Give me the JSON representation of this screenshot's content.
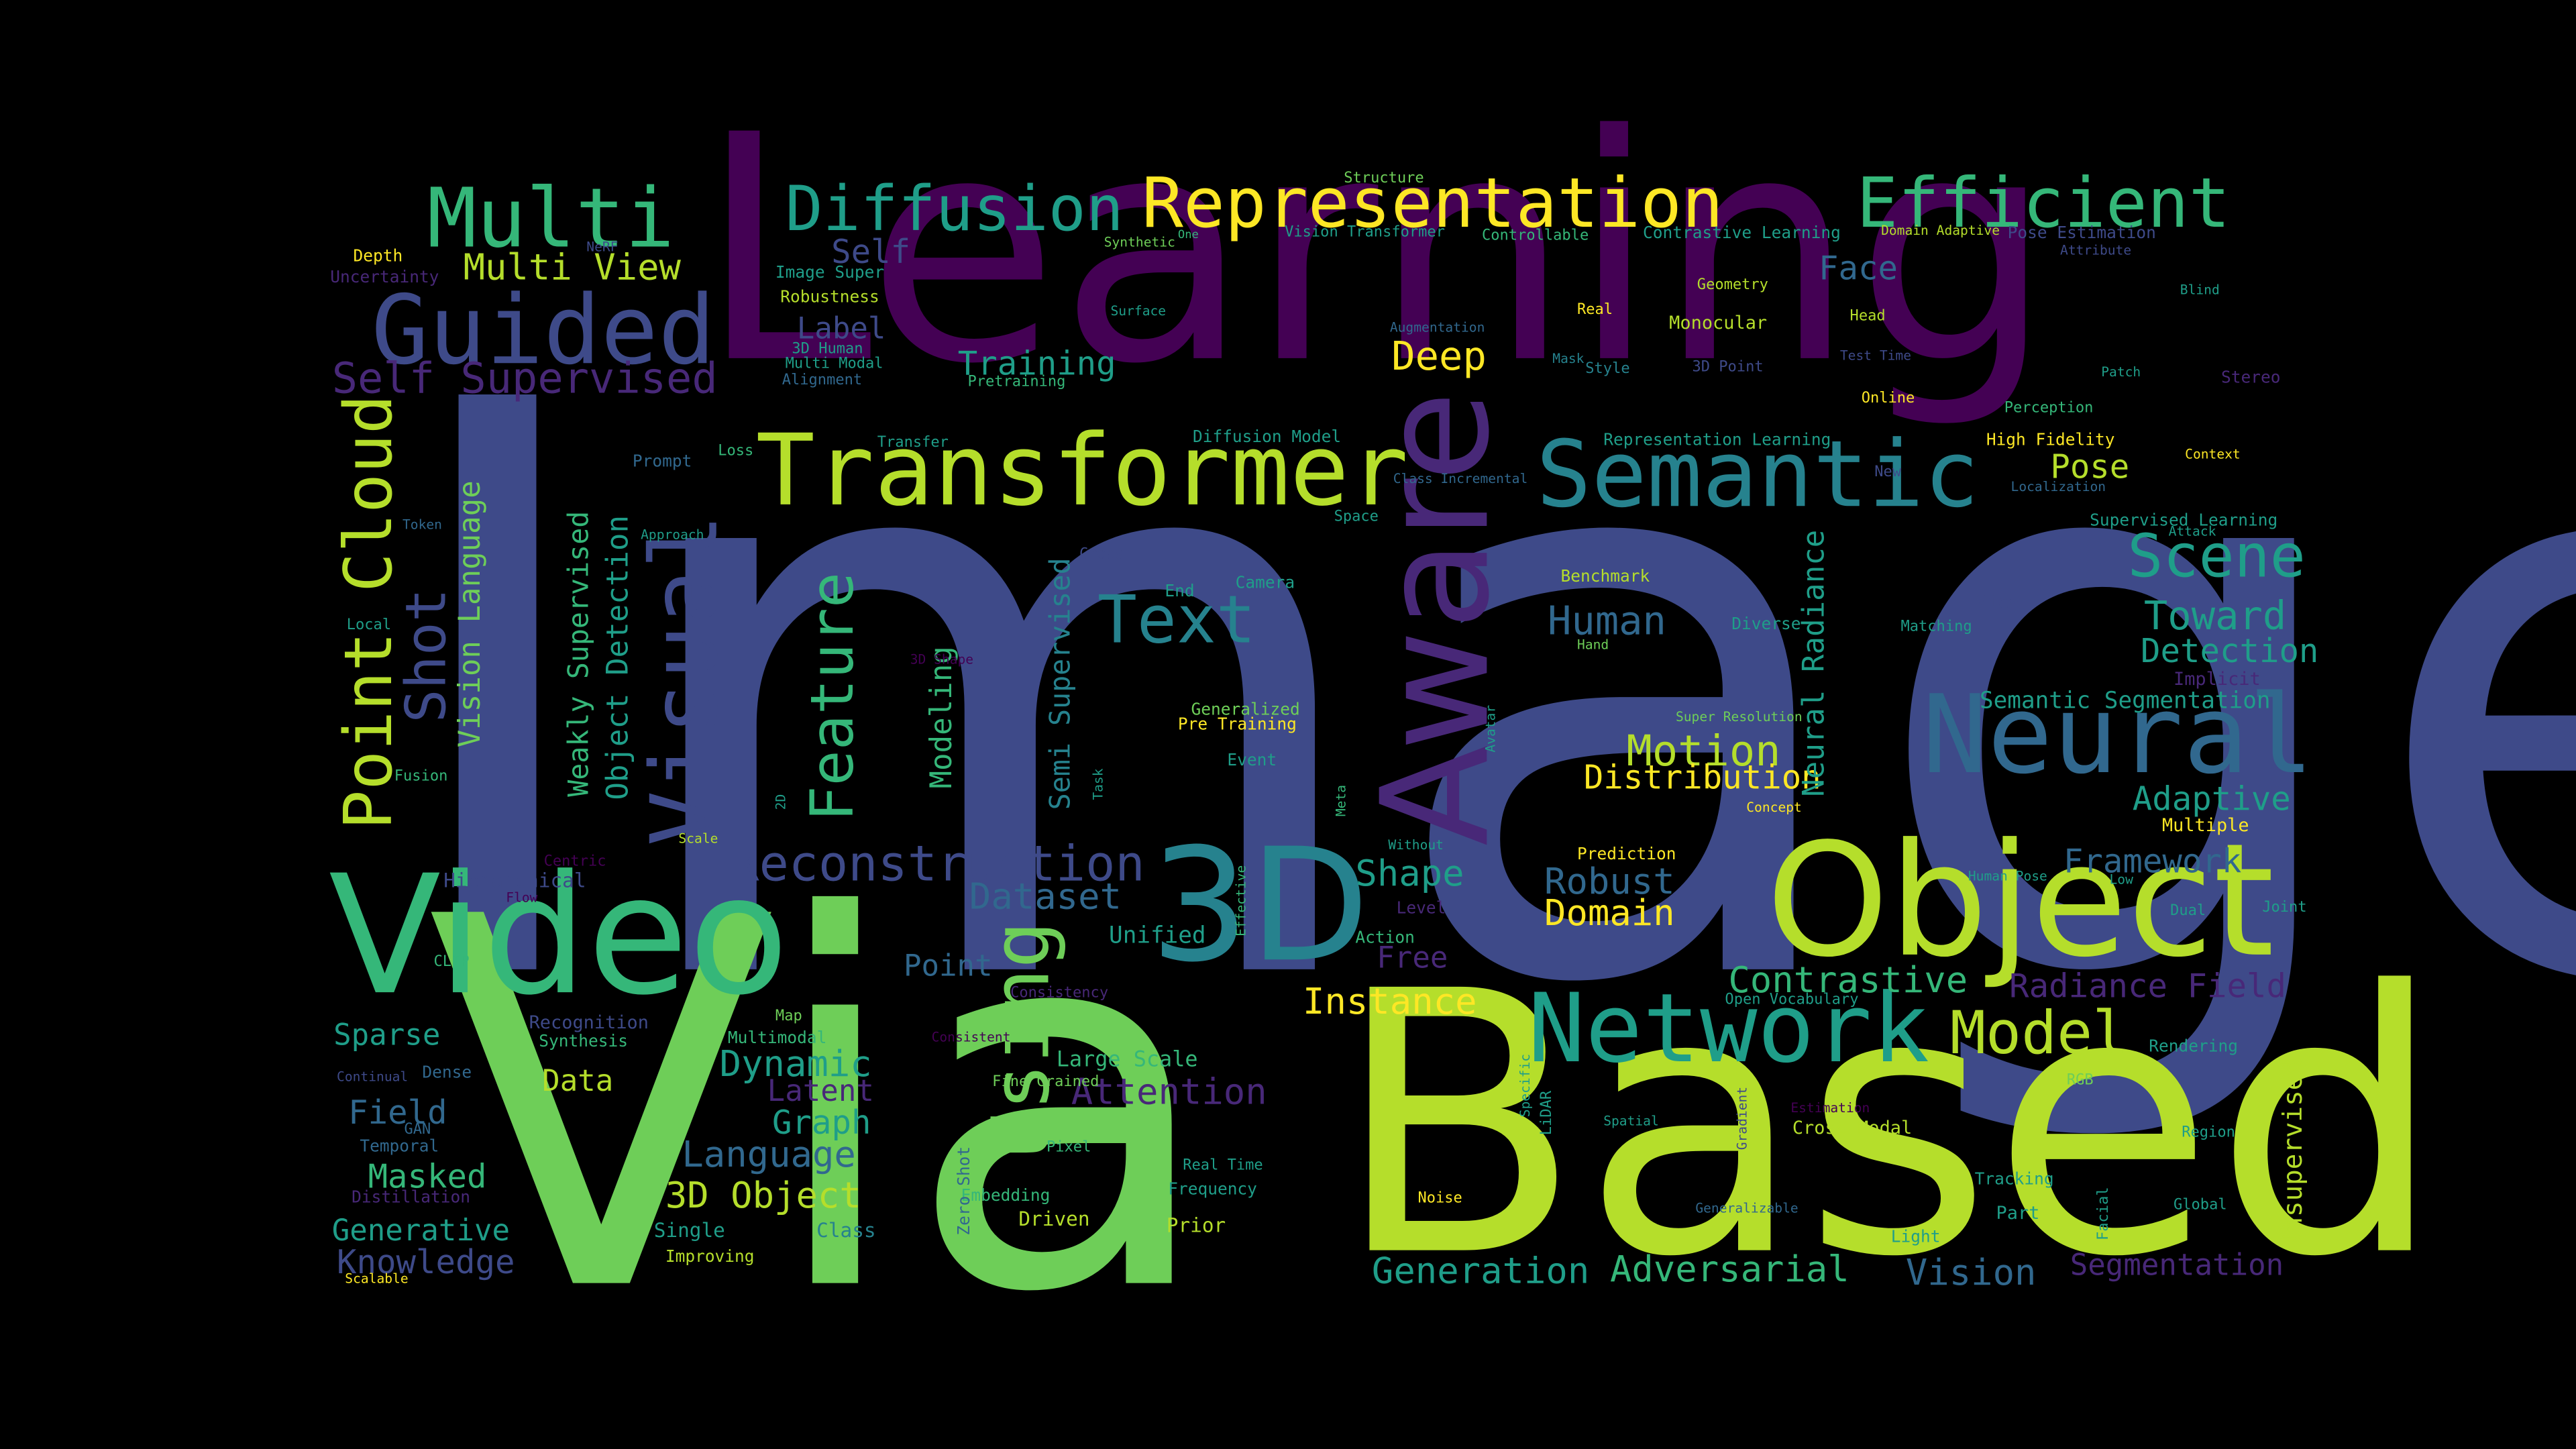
{
  "words": {
    "Image": "Image",
    "Learning": "Learning",
    "Via": "Via",
    "Based": "Based",
    "Video": "Video",
    "Object": "Object",
    "3D": "3D",
    "Aware": "Aware",
    "Transformer": "Transformer",
    "Semantic": "Semantic",
    "Neural": "Neural",
    "Network": "Network",
    "Guided": "Guided",
    "Multi": "Multi",
    "Representation": "Representation",
    "Efficient": "Efficient",
    "Diffusion": "Diffusion",
    "Visual": "Visual",
    "Using": "Using",
    "Feature": "Feature",
    "Point_Cloud": "Point Cloud",
    "Shot": "Shot",
    "Reconstruction": "Reconstruction",
    "Text": "Text",
    "Scene": "Scene",
    "Model": "Model",
    "Self_Supervised": "Self Supervised",
    "Multi_View": "Multi View",
    "Deep": "Deep",
    "Motion": "Motion",
    "Human": "Human",
    "Toward": "Toward",
    "Detection": "Detection",
    "Adaptive": "Adaptive",
    "Framework": "Framework",
    "Pose": "Pose",
    "Contrastive": "Contrastive",
    "Radiance_Field": "Radiance Field",
    "Instance": "Instance",
    "Shape": "Shape",
    "Robust": "Robust",
    "Domain": "Domain",
    "Distribution": "Distribution",
    "Dataset": "Dataset",
    "Training": "Training",
    "Face": "Face",
    "Label": "Label",
    "Self": "Self",
    "Vision_Language": "Vision Language",
    "Weakly_Supervised": "Weakly Supervised",
    "Object_Detection": "Object Detection",
    "Semi_Supervised": "Semi Supervised",
    "Modeling": "Modeling",
    "Neural_Radiance": "Neural Radiance",
    "Semantic_Segmentation": "Semantic Segmentation",
    "Point": "Point",
    "Free": "Free",
    "Unified": "Unified",
    "Attention": "Attention",
    "Dynamic": "Dynamic",
    "Latent": "Latent",
    "Graph": "Graph",
    "Language": "Language",
    "3D_Object": "3D Object",
    "Generation": "Generation",
    "Adversarial": "Adversarial",
    "Vision": "Vision",
    "Segmentation": "Segmentation",
    "Unsupervised": "Unsupervised",
    "Sparse": "Sparse",
    "Data": "Data",
    "Field": "Field",
    "Masked": "Masked",
    "Generative": "Generative",
    "Knowledge": "Knowledge",
    "Large_Scale": "Large Scale",
    "Hierarchical": "Hierarchical",
    "Uncertainty": "Uncertainty",
    "Depth": "Depth",
    "Robustness": "Robustness",
    "Image_Super": "Image Super",
    "3D_Human": "3D Human",
    "Multi_Modal": "Multi Modal",
    "Alignment": "Alignment",
    "Pretraining": "Pretraining",
    "Transfer": "Transfer",
    "Loss": "Loss",
    "Prompt": "Prompt",
    "Token": "Token",
    "Approach": "Approach",
    "Local": "Local",
    "Fusion": "Fusion",
    "Centric": "Centric",
    "Flow": "Flow",
    "CLIP": "CLIP",
    "Recognition": "Recognition",
    "Synthesis": "Synthesis",
    "Continual": "Continual",
    "Dense": "Dense",
    "GAN": "GAN",
    "Temporal": "Temporal",
    "Distillation": "Distillation",
    "Scalable": "Scalable",
    "Improving": "Improving",
    "Single": "Single",
    "Class": "Class",
    "Multimodal": "Multimodal",
    "Map": "Map",
    "Consistent": "Consistent",
    "Fine_Grained": "Fine Grained",
    "Pixel": "Pixel",
    "Real_Time": "Real Time",
    "Frequency": "Frequency",
    "Embedding": "Embedding",
    "Prior": "Prior",
    "Driven": "Driven",
    "Zero_Shot": "Zero Shot",
    "Consistency": "Consistency",
    "Scale": "Scale",
    "2D": "2D",
    "3D_Shape": "3D Shape",
    "Cross": "Cross",
    "End": "End",
    "Camera": "Camera",
    "Generalized": "Generalized",
    "Pre_Training": "Pre Training",
    "Event": "Event",
    "Task": "Task",
    "Effective": "Effective",
    "Meta": "Meta",
    "Without": "Without",
    "Level": "Level",
    "Action": "Action",
    "Avatar": "Avatar",
    "Benchmark": "Benchmark",
    "Space": "Space",
    "Diffusion_Model": "Diffusion Model",
    "Class_Incremental": "Class Incremental",
    "Augmentation": "Augmentation",
    "Surface": "Surface",
    "Synthetic": "Synthetic",
    "One": "One",
    "Structure": "Structure",
    "Vision_Transformer": "Vision Transformer",
    "Controllable": "Controllable",
    "Contrastive_Learning": "Contrastive Learning",
    "Domain_Adaptive": "Domain Adaptive",
    "Pose_Estimation": "Pose Estimation",
    "Attribute": "Attribute",
    "Geometry": "Geometry",
    "Real": "Real",
    "Monocular": "Monocular",
    "Head": "Head",
    "Mask": "Mask",
    "Style": "Style",
    "3D_Point": "3D Point",
    "Test_Time": "Test Time",
    "Online": "Online",
    "Perception": "Perception",
    "Representation_Learning": "Representation Learning",
    "High_Fidelity": "High Fidelity",
    "Localization": "Localization",
    "New": "New",
    "Context": "Context",
    "Blind": "Blind",
    "Patch": "Patch",
    "Stereo": "Stereo",
    "Supervised_Learning": "Supervised Learning",
    "Attack": "Attack",
    "Diverse": "Diverse",
    "Hand": "Hand",
    "Matching": "Matching",
    "View": "View",
    "Implicit": "Implicit",
    "Super_Resolution": "Super Resolution",
    "Concept": "Concept",
    "Multiple": "Multiple",
    "Prediction": "Prediction",
    "Human_Pose": "Human Pose",
    "Low": "Low",
    "Dual": "Dual",
    "Joint": "Joint",
    "Open_Vocabulary": "Open Vocabulary",
    "Rendering": "Rendering",
    "RGB": "RGB",
    "Cross_Modal": "Cross Modal",
    "Estimation": "Estimation",
    "Region": "Region",
    "Tracking": "Tracking",
    "Part": "Part",
    "Global": "Global",
    "Light": "Light",
    "Facial": "Facial",
    "Generalizable": "Generalizable",
    "Gradient": "Gradient",
    "Noise": "Noise",
    "Spatial": "Spatial",
    "Specific": "Specific",
    "LiDAR": "LiDAR",
    "NeRF": "NeRF"
  },
  "palette": {
    "dark_purple": "#440154",
    "purple": "#482878",
    "indigo": "#3e4a89",
    "blue": "#31688e",
    "teal": "#26828e",
    "green_teal": "#1f9e89",
    "green": "#35b779",
    "light_green": "#6ece58",
    "lime": "#b5de2b",
    "yellow": "#fde725"
  }
}
